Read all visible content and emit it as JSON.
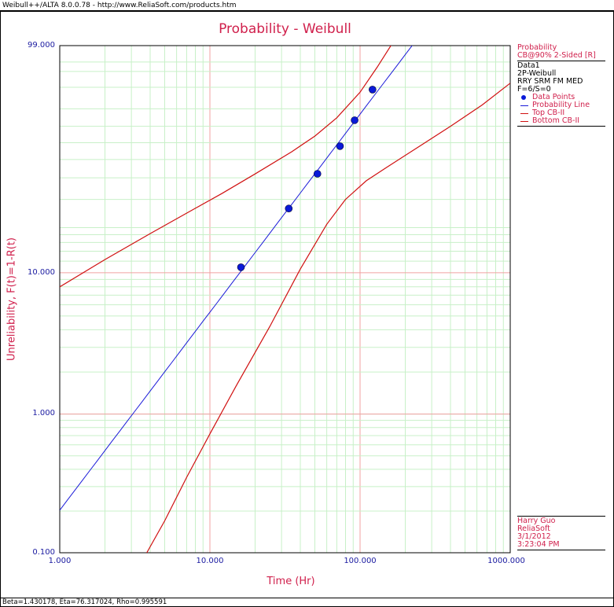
{
  "window": {
    "title": "Weibull++/ALTA 8.0.0.78 - http://www.ReliaSoft.com/products.htm"
  },
  "chart_data": {
    "type": "scatter",
    "title": "Probability - Weibull",
    "xlabel": "Time (Hr)",
    "ylabel": "Unreliability, F(t)=1-R(t)",
    "x_scale": "log",
    "y_scale": "weibull",
    "xlim": [
      1,
      1000
    ],
    "ylim": [
      0.1,
      99
    ],
    "x_ticks": [
      "1.000",
      "10.000",
      "100.000",
      "1000.000"
    ],
    "y_ticks": [
      "0.100",
      "1.000",
      "10.000",
      "99.000"
    ],
    "grid": true,
    "legend_position": "right",
    "series": [
      {
        "name": "Data Points",
        "kind": "points",
        "color": "#0a1ad8",
        "x": [
          16.1,
          33.5,
          52.0,
          73.5,
          92.0,
          121.0
        ],
        "y": [
          10.9,
          26.4,
          42.1,
          57.9,
          73.6,
          89.1
        ]
      },
      {
        "name": "Probability Line",
        "kind": "line",
        "color": "#1a1ad8",
        "beta": 1.430178,
        "eta": 76.317024
      },
      {
        "name": "Top CB-II",
        "kind": "curve",
        "color": "#d01010",
        "x": [
          1,
          2,
          4,
          8,
          12,
          20,
          35,
          50,
          70,
          100,
          130,
          165
        ],
        "y": [
          8,
          12.3,
          18.3,
          26.5,
          32.5,
          42,
          54.5,
          64,
          75,
          88,
          96,
          99.2
        ]
      },
      {
        "name": "Bottom CB-II",
        "kind": "curve",
        "color": "#d01010",
        "x": [
          3.8,
          5,
          7,
          10,
          15,
          25,
          40,
          60,
          80,
          110,
          150,
          250,
          400,
          650,
          1000
        ],
        "y": [
          0.1,
          0.17,
          0.35,
          0.72,
          1.6,
          4.2,
          10.6,
          21,
          30,
          38.5,
          45.5,
          58,
          70,
          82,
          91.5
        ]
      }
    ]
  },
  "legend": {
    "title": "Probability",
    "subtitle": "CB@90% 2-Sided [R]",
    "dataset": "Data1",
    "model": "2P-Weibull",
    "method": "RRY SRM FM MED",
    "counts": "F=6/S=0",
    "entries": [
      "Data Points",
      "Probability Line",
      "Top CB-II",
      "Bottom CB-II"
    ]
  },
  "info": {
    "user": "Harry Guo",
    "company": "ReliaSoft",
    "date": "3/1/2012",
    "time": "3:23:04 PM"
  },
  "footer": {
    "params": "Beta=1.430178, Eta=76.317024, Rho=0.995591"
  },
  "colors": {
    "accent": "#d0204c",
    "grid_major": "#f0a0a0",
    "grid_minor": "#c8f0c8",
    "points": "#0a1ad8",
    "bounds": "#d01010"
  }
}
